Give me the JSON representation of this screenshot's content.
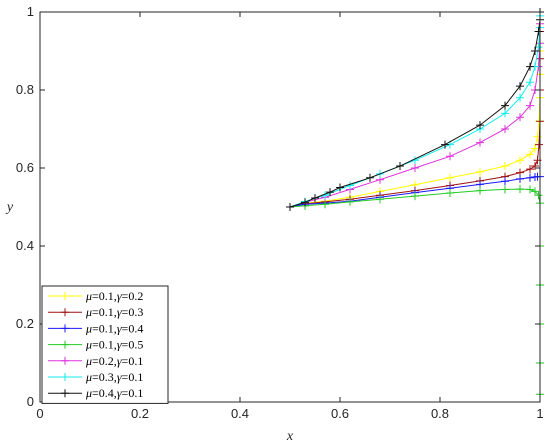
{
  "chart_data": {
    "type": "line",
    "xlabel": "x",
    "ylabel": "y",
    "xlim": [
      0,
      1
    ],
    "ylim": [
      0,
      1
    ],
    "xticks": [
      "0",
      "0.2",
      "0.4",
      "0.6",
      "0.8",
      "1"
    ],
    "yticks": [
      "0",
      "0.2",
      "0.4",
      "0.6",
      "0.8",
      "1"
    ],
    "grid": false,
    "legend_position": "bottom-left",
    "series": [
      {
        "name": "μ=0.1,γ=0.2",
        "mu": "0.1",
        "gamma": "0.2",
        "color": "#ffff00",
        "x": [
          0.5,
          0.53,
          0.57,
          0.62,
          0.68,
          0.75,
          0.82,
          0.88,
          0.93,
          0.96,
          0.98,
          0.99,
          0.995,
          0.998,
          1.0,
          1.0,
          1.0,
          1.0,
          1.0
        ],
        "y": [
          0.5,
          0.51,
          0.515,
          0.525,
          0.54,
          0.557,
          0.575,
          0.59,
          0.605,
          0.62,
          0.635,
          0.65,
          0.68,
          0.72,
          0.78,
          0.84,
          0.9,
          0.95,
          1.0
        ]
      },
      {
        "name": "μ=0.1,γ=0.3",
        "mu": "0.1",
        "gamma": "0.3",
        "color": "#a01010",
        "x": [
          0.5,
          0.53,
          0.57,
          0.62,
          0.68,
          0.75,
          0.82,
          0.88,
          0.93,
          0.96,
          0.98,
          0.99,
          0.995,
          0.998,
          1.0,
          1.0,
          1.0,
          1.0,
          1.0
        ],
        "y": [
          0.5,
          0.508,
          0.513,
          0.52,
          0.53,
          0.542,
          0.555,
          0.567,
          0.578,
          0.588,
          0.597,
          0.605,
          0.62,
          0.66,
          0.72,
          0.8,
          0.88,
          0.95,
          1.0
        ]
      },
      {
        "name": "μ=0.1,γ=0.4",
        "mu": "0.1",
        "gamma": "0.4",
        "color": "#1a1aff",
        "x": [
          0.5,
          0.53,
          0.57,
          0.62,
          0.68,
          0.75,
          0.82,
          0.88,
          0.93,
          0.96,
          0.98,
          0.99,
          0.995,
          1.0
        ],
        "y": [
          0.5,
          0.507,
          0.51,
          0.515,
          0.525,
          0.537,
          0.548,
          0.558,
          0.566,
          0.572,
          0.575,
          0.577,
          0.578,
          0.578
        ]
      },
      {
        "name": "μ=0.1,γ=0.5",
        "mu": "0.1",
        "gamma": "0.5",
        "color": "#22cc22",
        "x": [
          0.5,
          0.53,
          0.57,
          0.62,
          0.68,
          0.75,
          0.82,
          0.88,
          0.93,
          0.96,
          0.98,
          0.99,
          0.997,
          1.0,
          1.0,
          1.0,
          1.0,
          1.0,
          1.0
        ],
        "y": [
          0.5,
          0.503,
          0.507,
          0.513,
          0.52,
          0.528,
          0.536,
          0.542,
          0.545,
          0.546,
          0.545,
          0.54,
          0.53,
          0.51,
          0.4,
          0.3,
          0.2,
          0.1,
          0.02
        ]
      },
      {
        "name": "μ=0.2,γ=0.1",
        "mu": "0.2",
        "gamma": "0.1",
        "color": "#dd33dd",
        "x": [
          0.5,
          0.53,
          0.57,
          0.62,
          0.68,
          0.75,
          0.82,
          0.88,
          0.93,
          0.96,
          0.98,
          0.99,
          0.997,
          1.0,
          1.0,
          1.0
        ],
        "y": [
          0.5,
          0.512,
          0.525,
          0.545,
          0.57,
          0.6,
          0.63,
          0.665,
          0.7,
          0.73,
          0.76,
          0.8,
          0.86,
          0.92,
          0.97,
          1.0
        ]
      },
      {
        "name": "μ=0.3,γ=0.1",
        "mu": "0.3",
        "gamma": "0.1",
        "color": "#11eeee",
        "x": [
          0.5,
          0.53,
          0.57,
          0.62,
          0.68,
          0.75,
          0.82,
          0.88,
          0.93,
          0.96,
          0.98,
          0.99,
          0.997,
          1.0,
          1.0,
          1.0
        ],
        "y": [
          0.5,
          0.514,
          0.53,
          0.555,
          0.585,
          0.62,
          0.66,
          0.7,
          0.74,
          0.78,
          0.82,
          0.86,
          0.91,
          0.96,
          0.99,
          1.0
        ]
      },
      {
        "name": "μ=0.4,γ=0.1",
        "mu": "0.4",
        "gamma": "0.1",
        "color": "#111111",
        "x": [
          0.5,
          0.53,
          0.55,
          0.58,
          0.6,
          0.66,
          0.72,
          0.81,
          0.88,
          0.93,
          0.96,
          0.98,
          0.99,
          0.997,
          1.0,
          1.0
        ],
        "y": [
          0.5,
          0.512,
          0.523,
          0.538,
          0.55,
          0.575,
          0.605,
          0.66,
          0.71,
          0.76,
          0.81,
          0.86,
          0.9,
          0.95,
          0.98,
          1.0
        ]
      }
    ]
  }
}
